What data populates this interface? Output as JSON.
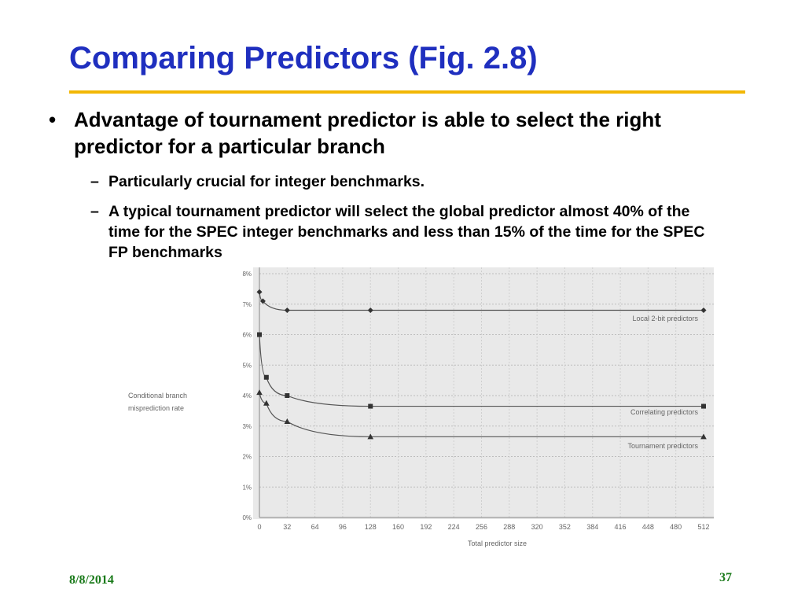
{
  "slide": {
    "title": "Comparing Predictors (Fig. 2.8)",
    "bullet": "Advantage of tournament predictor is able to select the right predictor for a particular branch",
    "sub_bullets": [
      "Particularly crucial for integer benchmarks.",
      "A typical tournament predictor will select the global predictor almost 40% of the time for the SPEC integer benchmarks and less than 15% of the time for the SPEC FP benchmarks"
    ],
    "bullet_glyph": "•",
    "dash_glyph": "–"
  },
  "footer": {
    "date": "8/8/2014",
    "page": "37"
  },
  "colors": {
    "title": "#1f2fbf",
    "rule": "#f2b705",
    "footer": "#1a7a1a",
    "chart_bg": "#e9e9e9",
    "series_line": "#555555"
  },
  "chart_data": {
    "type": "line",
    "xlabel": "Total predictor size",
    "ylabel": "Conditional branch misprediction rate",
    "x_ticks": [
      0,
      32,
      64,
      96,
      128,
      160,
      192,
      224,
      256,
      288,
      320,
      352,
      384,
      416,
      448,
      480,
      512
    ],
    "y_ticks": [
      "0%",
      "1%",
      "2%",
      "3%",
      "4%",
      "5%",
      "6%",
      "7%",
      "8%"
    ],
    "xlim": [
      0,
      512
    ],
    "ylim": [
      0,
      8
    ],
    "grid": true,
    "series": [
      {
        "name": "Local 2-bit predictors",
        "marker": "diamond",
        "points": [
          [
            0,
            7.4
          ],
          [
            4,
            7.1
          ],
          [
            32,
            6.8
          ],
          [
            128,
            6.8
          ],
          [
            512,
            6.8
          ]
        ]
      },
      {
        "name": "Correlating predictors",
        "marker": "square",
        "points": [
          [
            0,
            6.0
          ],
          [
            8,
            4.6
          ],
          [
            32,
            4.0
          ],
          [
            128,
            3.65
          ],
          [
            512,
            3.65
          ]
        ]
      },
      {
        "name": "Tournament predictors",
        "marker": "triangle",
        "points": [
          [
            0,
            4.1
          ],
          [
            8,
            3.75
          ],
          [
            32,
            3.15
          ],
          [
            128,
            2.65
          ],
          [
            512,
            2.65
          ]
        ]
      }
    ]
  }
}
